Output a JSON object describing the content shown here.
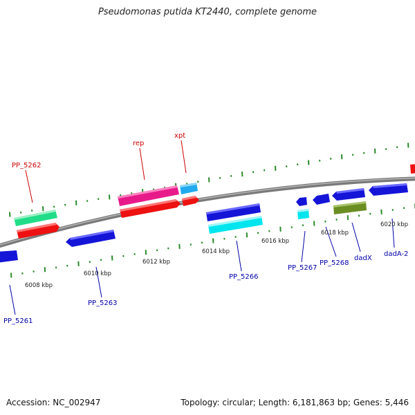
{
  "title": "Pseudomonas putida KT2440, complete genome",
  "footer": {
    "accession": "Accession: NC_002947",
    "summary": "Topology: circular; Length: 6,181,863 bp; Genes: 5,446"
  },
  "colors": {
    "backbone": "#8a8a8a",
    "tick": "#2a8a2a",
    "tick_label": "#222222",
    "label_forward": "#cc0000",
    "label_reverse": "#0000aa"
  },
  "ticks": [
    {
      "label": "6008 kbp"
    },
    {
      "label": "6010 kbp"
    },
    {
      "label": "6012 kbp"
    },
    {
      "label": "6014 kbp"
    },
    {
      "label": "6016 kbp"
    },
    {
      "label": "6018 kbp"
    },
    {
      "label": "6020 kbp"
    }
  ],
  "genes": [
    {
      "label": "PP_5261",
      "color": "#1515d8",
      "strand": "reverse"
    },
    {
      "label": "PP_5262",
      "color": "#22dd88",
      "strand": "forward"
    },
    {
      "label": "PP_5263",
      "color": "#1515d8",
      "strand": "reverse"
    },
    {
      "label": "rep",
      "color": "#e81a8a",
      "strand": "forward"
    },
    {
      "label": "xpt",
      "color": "#22aaee",
      "strand": "forward"
    },
    {
      "label": "PP_5266",
      "color": "#1515d8",
      "strand": "reverse"
    },
    {
      "label": "PP_5267",
      "color": "#1515d8",
      "strand": "reverse"
    },
    {
      "label": "PP_5268",
      "color": "#1515d8",
      "strand": "reverse"
    },
    {
      "label": "dadX",
      "color": "#1515d8",
      "strand": "reverse"
    },
    {
      "label": "dadA-2",
      "color": "#1515d8",
      "strand": "reverse"
    }
  ]
}
